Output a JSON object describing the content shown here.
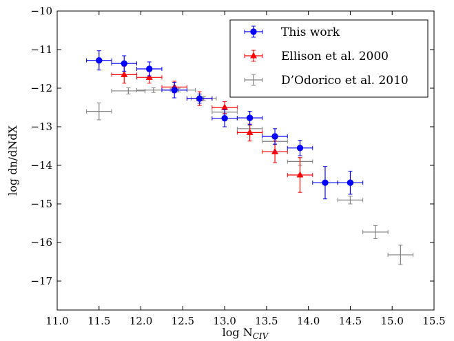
{
  "chart_data": {
    "type": "scatter",
    "xlabel": "log N",
    "xlabel_sub": "CIV",
    "ylabel": "log dn/dNdX",
    "xlim": [
      11.0,
      15.5
    ],
    "ylim": [
      -17.75,
      -10.0
    ],
    "xticks": [
      "11.0",
      "11.5",
      "12.0",
      "12.5",
      "13.0",
      "13.5",
      "14.0",
      "14.5",
      "15.0",
      "15.5"
    ],
    "yticks": [
      "−10",
      "−11",
      "−12",
      "−13",
      "−14",
      "−15",
      "−16",
      "−17"
    ],
    "grid": false,
    "legend_position": "top-right",
    "series": [
      {
        "name": "This work",
        "color": "#0000ff",
        "marker": "circle",
        "points": [
          {
            "x": 11.5,
            "y": -11.28,
            "xerr": 0.15,
            "yerr": 0.25
          },
          {
            "x": 11.8,
            "y": -11.36,
            "xerr": 0.15,
            "yerr": 0.2
          },
          {
            "x": 12.1,
            "y": -11.5,
            "xerr": 0.15,
            "yerr": 0.18
          },
          {
            "x": 12.4,
            "y": -12.05,
            "xerr": 0.15,
            "yerr": 0.2
          },
          {
            "x": 12.7,
            "y": -12.27,
            "xerr": 0.15,
            "yerr": 0.12
          },
          {
            "x": 13.0,
            "y": -12.78,
            "xerr": 0.15,
            "yerr": 0.22
          },
          {
            "x": 13.3,
            "y": -12.77,
            "xerr": 0.15,
            "yerr": 0.17
          },
          {
            "x": 13.6,
            "y": -13.25,
            "xerr": 0.15,
            "yerr": 0.2
          },
          {
            "x": 13.9,
            "y": -13.55,
            "xerr": 0.15,
            "yerr": 0.2
          },
          {
            "x": 14.2,
            "y": -14.45,
            "xerr": 0.15,
            "yerr": 0.42
          },
          {
            "x": 14.5,
            "y": -14.45,
            "xerr": 0.15,
            "yerr": 0.3
          }
        ]
      },
      {
        "name": "Ellison et al. 2000",
        "color": "#ff0000",
        "marker": "triangle",
        "points": [
          {
            "x": 11.8,
            "y": -11.65,
            "xerr": 0.15,
            "yerr": 0.22
          },
          {
            "x": 12.1,
            "y": -11.72,
            "xerr": 0.15,
            "yerr": 0.15
          },
          {
            "x": 12.4,
            "y": -11.97,
            "xerr": 0.15,
            "yerr": 0.15
          },
          {
            "x": 12.7,
            "y": -12.27,
            "xerr": 0.15,
            "yerr": 0.18
          },
          {
            "x": 13.0,
            "y": -12.5,
            "xerr": 0.15,
            "yerr": 0.15
          },
          {
            "x": 13.3,
            "y": -13.15,
            "xerr": 0.15,
            "yerr": 0.22
          },
          {
            "x": 13.6,
            "y": -13.65,
            "xerr": 0.15,
            "yerr": 0.28
          },
          {
            "x": 13.9,
            "y": -14.25,
            "xerr": 0.15,
            "yerr": 0.45
          }
        ]
      },
      {
        "name": "D’Odorico et al. 2010",
        "color": "#808080",
        "marker": "none",
        "points": [
          {
            "x": 11.5,
            "y": -12.6,
            "xerr": 0.15,
            "yerr": 0.22
          },
          {
            "x": 11.85,
            "y": -12.07,
            "xerr": 0.2,
            "yerr": 0.08
          },
          {
            "x": 12.15,
            "y": -12.05,
            "xerr": 0.2,
            "yerr": 0.06
          },
          {
            "x": 12.45,
            "y": -12.05,
            "xerr": 0.2,
            "yerr": 0.05
          },
          {
            "x": 12.75,
            "y": -12.27,
            "xerr": 0.15,
            "yerr": 0.05
          },
          {
            "x": 13.0,
            "y": -12.62,
            "xerr": 0.15,
            "yerr": 0.06
          },
          {
            "x": 13.3,
            "y": -13.05,
            "xerr": 0.15,
            "yerr": 0.08
          },
          {
            "x": 13.6,
            "y": -13.38,
            "xerr": 0.15,
            "yerr": 0.08
          },
          {
            "x": 13.9,
            "y": -13.9,
            "xerr": 0.15,
            "yerr": 0.1
          },
          {
            "x": 14.5,
            "y": -14.9,
            "xerr": 0.15,
            "yerr": 0.1
          },
          {
            "x": 14.8,
            "y": -15.73,
            "xerr": 0.15,
            "yerr": 0.17
          },
          {
            "x": 15.1,
            "y": -16.32,
            "xerr": 0.15,
            "yerr": 0.25
          }
        ]
      }
    ]
  }
}
